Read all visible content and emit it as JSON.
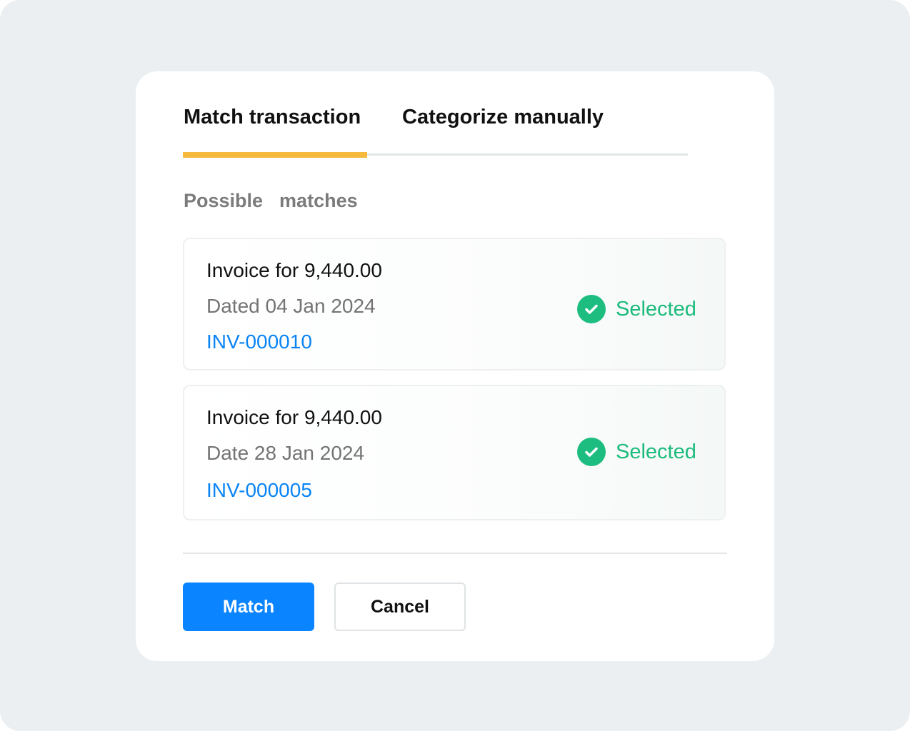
{
  "tabs": [
    {
      "label": "Match transaction",
      "active": true
    },
    {
      "label": "Categorize manually",
      "active": false
    }
  ],
  "colors": {
    "accent_tab": "#f5b93e",
    "primary": "#0a84ff",
    "success": "#1bbb7d",
    "link": "#0a84f5"
  },
  "section_title": "Possible  matches",
  "matches": [
    {
      "title": "Invoice for 9,440.00",
      "date": "Dated 04 Jan 2024",
      "invoice": "INV-000010",
      "status": "Selected",
      "status_icon": "check-circle-icon"
    },
    {
      "title": "Invoice for 9,440.00",
      "date": "Date 28 Jan 2024",
      "invoice": "INV-000005",
      "status": "Selected",
      "status_icon": "check-circle-icon"
    }
  ],
  "buttons": {
    "match": "Match",
    "cancel": "Cancel"
  }
}
